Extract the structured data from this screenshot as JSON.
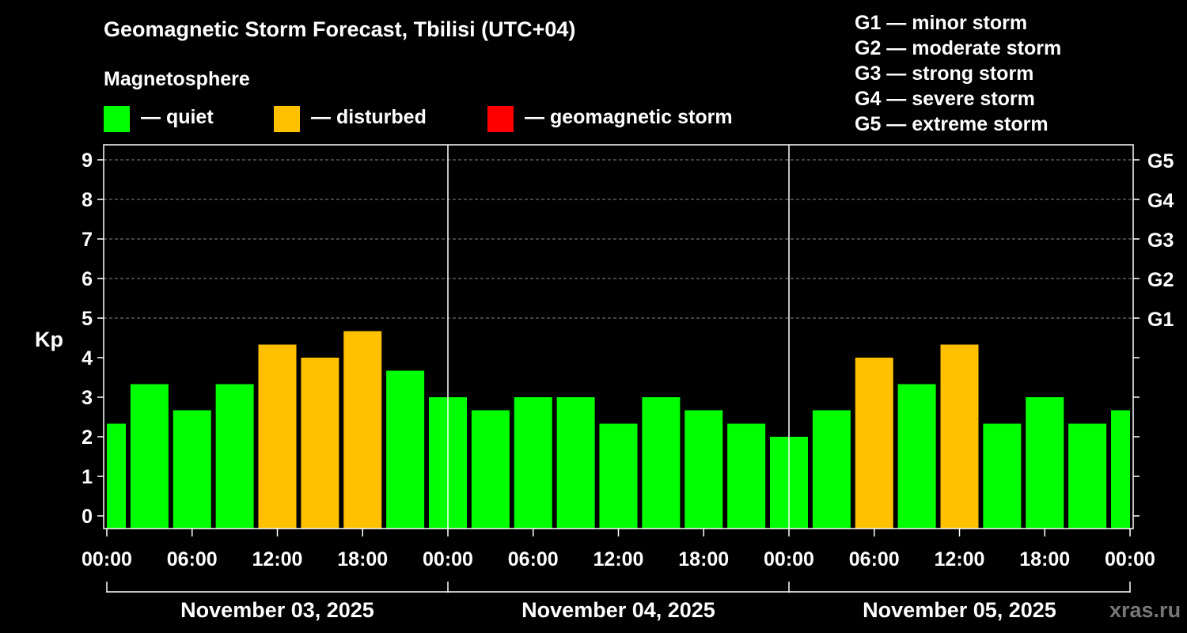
{
  "title": "Geomagnetic Storm Forecast, Tbilisi (UTC+04)",
  "subtitle": "Magnetosphere",
  "legend": [
    {
      "label": "— quiet",
      "color": "#00ff00"
    },
    {
      "label": "— disturbed",
      "color": "#ffc000"
    },
    {
      "label": "— geomagnetic storm",
      "color": "#ff0000"
    }
  ],
  "storm_levels": [
    "G1 — minor storm",
    "G2 — moderate storm",
    "G3 — strong storm",
    "G4 — severe storm",
    "G5 — extreme storm"
  ],
  "watermark": "xras.ru",
  "colors": {
    "quiet": "#00ff00",
    "disturbed": "#ffc000",
    "storm": "#ff0000",
    "background": "#000000",
    "axis": "#ffffff"
  },
  "chart_data": {
    "type": "bar",
    "ylabel": "Kp",
    "ylim": [
      0,
      9
    ],
    "yticks": [
      "0",
      "1",
      "2",
      "3",
      "4",
      "5",
      "6",
      "7",
      "8",
      "9"
    ],
    "right_ticks": [
      {
        "kp": 5,
        "label": "G1"
      },
      {
        "kp": 6,
        "label": "G2"
      },
      {
        "kp": 7,
        "label": "G3"
      },
      {
        "kp": 8,
        "label": "G4"
      },
      {
        "kp": 9,
        "label": "G5"
      }
    ],
    "grid": "horizontal dashed",
    "xticks": [
      "00:00",
      "06:00",
      "12:00",
      "18:00",
      "00:00",
      "06:00",
      "12:00",
      "18:00",
      "00:00",
      "06:00",
      "12:00",
      "18:00",
      "00:00"
    ],
    "days": [
      "November 03, 2025",
      "November 04, 2025",
      "November 05, 2025"
    ],
    "interval_hours": 3,
    "values": [
      2.33,
      3.33,
      2.67,
      3.33,
      4.33,
      4.0,
      4.67,
      3.67,
      3.0,
      2.67,
      3.0,
      3.0,
      2.33,
      3.0,
      2.67,
      2.33,
      2.0,
      2.67,
      4.0,
      3.33,
      4.33,
      2.33,
      3.0,
      2.33,
      2.67
    ],
    "status": [
      "quiet",
      "quiet",
      "quiet",
      "quiet",
      "disturbed",
      "disturbed",
      "disturbed",
      "quiet",
      "quiet",
      "quiet",
      "quiet",
      "quiet",
      "quiet",
      "quiet",
      "quiet",
      "quiet",
      "quiet",
      "quiet",
      "disturbed",
      "quiet",
      "disturbed",
      "quiet",
      "quiet",
      "quiet",
      "quiet"
    ]
  }
}
